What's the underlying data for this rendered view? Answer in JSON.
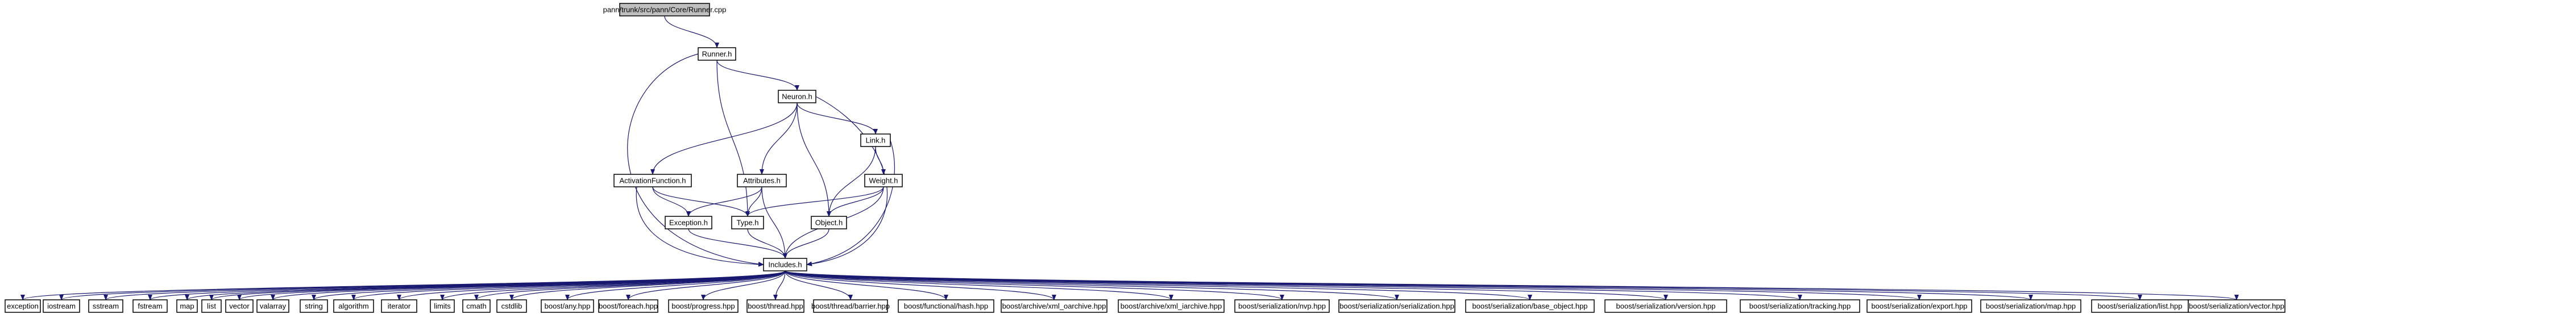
{
  "diagram": {
    "title": "",
    "root": "pann/trunk/src/pann/Core/Runner.cpp",
    "nodes": [
      {
        "id": "runner_cpp",
        "label": "pann/trunk/src/pann/Core/Runner.cpp",
        "root": true
      },
      {
        "id": "runner_h",
        "label": "Runner.h"
      },
      {
        "id": "neuron_h",
        "label": "Neuron.h"
      },
      {
        "id": "link_h",
        "label": "Link.h"
      },
      {
        "id": "activationfunction_h",
        "label": "ActivationFunction.h"
      },
      {
        "id": "attributes_h",
        "label": "Attributes.h"
      },
      {
        "id": "weight_h",
        "label": "Weight.h"
      },
      {
        "id": "exception_h",
        "label": "Exception.h"
      },
      {
        "id": "type_h",
        "label": "Type.h"
      },
      {
        "id": "object_h",
        "label": "Object.h"
      },
      {
        "id": "includes_h",
        "label": "Includes.h"
      },
      {
        "id": "exception",
        "label": "exception"
      },
      {
        "id": "iostream",
        "label": "iostream"
      },
      {
        "id": "sstream",
        "label": "sstream"
      },
      {
        "id": "fstream",
        "label": "fstream"
      },
      {
        "id": "map",
        "label": "map"
      },
      {
        "id": "list",
        "label": "list"
      },
      {
        "id": "vector",
        "label": "vector"
      },
      {
        "id": "valarray",
        "label": "valarray"
      },
      {
        "id": "string",
        "label": "string"
      },
      {
        "id": "algorithm",
        "label": "algorithm"
      },
      {
        "id": "iterator",
        "label": "iterator"
      },
      {
        "id": "limits",
        "label": "limits"
      },
      {
        "id": "cmath",
        "label": "cmath"
      },
      {
        "id": "cstdlib",
        "label": "cstdlib"
      },
      {
        "id": "boost_any",
        "label": "boost/any.hpp"
      },
      {
        "id": "boost_foreach",
        "label": "boost/foreach.hpp"
      },
      {
        "id": "boost_progress",
        "label": "boost/progress.hpp"
      },
      {
        "id": "boost_thread",
        "label": "boost/thread.hpp"
      },
      {
        "id": "boost_thread_barrier",
        "label": "boost/thread/barrier.hpp"
      },
      {
        "id": "boost_functional_hash",
        "label": "boost/functional/hash.hpp"
      },
      {
        "id": "boost_xml_oarchive",
        "label": "boost/archive/xml_oarchive.hpp"
      },
      {
        "id": "boost_xml_iarchive",
        "label": "boost/archive/xml_iarchive.hpp"
      },
      {
        "id": "boost_ser_nvp",
        "label": "boost/serialization/nvp.hpp"
      },
      {
        "id": "boost_ser_serialization",
        "label": "boost/serialization/serialization.hpp"
      },
      {
        "id": "boost_ser_base_object",
        "label": "boost/serialization/base_object.hpp"
      },
      {
        "id": "boost_ser_version",
        "label": "boost/serialization/version.hpp"
      },
      {
        "id": "boost_ser_tracking",
        "label": "boost/serialization/tracking.hpp"
      },
      {
        "id": "boost_ser_export",
        "label": "boost/serialization/export.hpp"
      },
      {
        "id": "boost_ser_map",
        "label": "boost/serialization/map.hpp"
      },
      {
        "id": "boost_ser_list",
        "label": "boost/serialization/list.hpp"
      },
      {
        "id": "boost_ser_vector",
        "label": "boost/serialization/vector.hpp"
      }
    ],
    "edges": [
      {
        "from": "runner_cpp",
        "to": "runner_h"
      },
      {
        "from": "runner_h",
        "to": "neuron_h"
      },
      {
        "from": "runner_h",
        "to": "type_h"
      },
      {
        "from": "runner_h",
        "to": "includes_h"
      },
      {
        "from": "neuron_h",
        "to": "link_h"
      },
      {
        "from": "neuron_h",
        "to": "activationfunction_h"
      },
      {
        "from": "neuron_h",
        "to": "attributes_h"
      },
      {
        "from": "neuron_h",
        "to": "object_h"
      },
      {
        "from": "neuron_h",
        "to": "includes_h"
      },
      {
        "from": "link_h",
        "to": "weight_h"
      },
      {
        "from": "link_h",
        "to": "object_h"
      },
      {
        "from": "link_h",
        "to": "includes_h"
      },
      {
        "from": "activationfunction_h",
        "to": "exception_h"
      },
      {
        "from": "activationfunction_h",
        "to": "type_h"
      },
      {
        "from": "activationfunction_h",
        "to": "includes_h"
      },
      {
        "from": "attributes_h",
        "to": "exception_h"
      },
      {
        "from": "attributes_h",
        "to": "type_h"
      },
      {
        "from": "attributes_h",
        "to": "includes_h"
      },
      {
        "from": "weight_h",
        "to": "type_h"
      },
      {
        "from": "weight_h",
        "to": "object_h"
      },
      {
        "from": "weight_h",
        "to": "includes_h"
      },
      {
        "from": "exception_h",
        "to": "includes_h"
      },
      {
        "from": "type_h",
        "to": "includes_h"
      },
      {
        "from": "object_h",
        "to": "includes_h"
      },
      {
        "from": "includes_h",
        "to": "exception"
      },
      {
        "from": "includes_h",
        "to": "iostream"
      },
      {
        "from": "includes_h",
        "to": "sstream"
      },
      {
        "from": "includes_h",
        "to": "fstream"
      },
      {
        "from": "includes_h",
        "to": "map"
      },
      {
        "from": "includes_h",
        "to": "list"
      },
      {
        "from": "includes_h",
        "to": "vector"
      },
      {
        "from": "includes_h",
        "to": "valarray"
      },
      {
        "from": "includes_h",
        "to": "string"
      },
      {
        "from": "includes_h",
        "to": "algorithm"
      },
      {
        "from": "includes_h",
        "to": "iterator"
      },
      {
        "from": "includes_h",
        "to": "limits"
      },
      {
        "from": "includes_h",
        "to": "cmath"
      },
      {
        "from": "includes_h",
        "to": "cstdlib"
      },
      {
        "from": "includes_h",
        "to": "boost_any"
      },
      {
        "from": "includes_h",
        "to": "boost_foreach"
      },
      {
        "from": "includes_h",
        "to": "boost_progress"
      },
      {
        "from": "includes_h",
        "to": "boost_thread"
      },
      {
        "from": "includes_h",
        "to": "boost_thread_barrier"
      },
      {
        "from": "includes_h",
        "to": "boost_functional_hash"
      },
      {
        "from": "includes_h",
        "to": "boost_xml_oarchive"
      },
      {
        "from": "includes_h",
        "to": "boost_xml_iarchive"
      },
      {
        "from": "includes_h",
        "to": "boost_ser_nvp"
      },
      {
        "from": "includes_h",
        "to": "boost_ser_serialization"
      },
      {
        "from": "includes_h",
        "to": "boost_ser_base_object"
      },
      {
        "from": "includes_h",
        "to": "boost_ser_version"
      },
      {
        "from": "includes_h",
        "to": "boost_ser_tracking"
      },
      {
        "from": "includes_h",
        "to": "boost_ser_export"
      },
      {
        "from": "includes_h",
        "to": "boost_ser_map"
      },
      {
        "from": "includes_h",
        "to": "boost_ser_list"
      },
      {
        "from": "includes_h",
        "to": "boost_ser_vector"
      }
    ]
  },
  "colors": {
    "edge": "#191970",
    "root_fill": "#bfbfbf",
    "node_fill": "#ffffff",
    "node_border": "#000000"
  }
}
